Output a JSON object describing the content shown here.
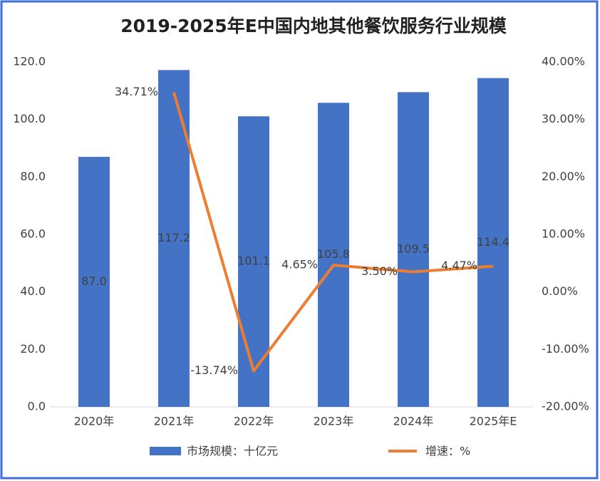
{
  "chart_data": {
    "type": "bar_line",
    "title": "2019-2025年E中国内地其他餐饮服务行业规模",
    "categories": [
      "2020年",
      "2021年",
      "2022年",
      "2023年",
      "2024年",
      "2025年E"
    ],
    "series": [
      {
        "name": "市场规模：十亿元",
        "color": "#4472c4",
        "type": "bar",
        "values": [
          87.0,
          117.2,
          101.1,
          105.8,
          109.5,
          114.4
        ],
        "value_labels": [
          "87.0",
          "117.2",
          "101.1",
          "105.8",
          "109.5",
          "114.4"
        ]
      },
      {
        "name": "增速：%",
        "color": "#ed7d31",
        "type": "line",
        "axis": "y2",
        "values": [
          null,
          34.71,
          -13.74,
          4.65,
          3.5,
          4.47
        ],
        "value_labels": [
          null,
          "34.71%",
          "-13.74%",
          "4.65%",
          "3.50%",
          "4.47%"
        ]
      }
    ],
    "ylim": [
      0,
      120
    ],
    "yticks": [
      {
        "value": 0,
        "label": "0.0"
      },
      {
        "value": 20,
        "label": "20.0"
      },
      {
        "value": 40,
        "label": "40.0"
      },
      {
        "value": 60,
        "label": "60.0"
      },
      {
        "value": 80,
        "label": "80.0"
      },
      {
        "value": 100,
        "label": "100.0"
      },
      {
        "value": 120,
        "label": "120.0"
      }
    ],
    "y2lim": [
      -20,
      40
    ],
    "y2ticks": [
      {
        "value": -20,
        "label": "-20.00%"
      },
      {
        "value": -10,
        "label": "-10.00%"
      },
      {
        "value": 0,
        "label": "0.00%"
      },
      {
        "value": 10,
        "label": "10.00%"
      },
      {
        "value": 20,
        "label": "20.00%"
      },
      {
        "value": 30,
        "label": "30.00%"
      },
      {
        "value": 40,
        "label": "40.00%"
      }
    ],
    "legend": "bottom"
  }
}
